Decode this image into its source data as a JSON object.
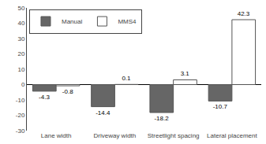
{
  "chart_data": {
    "type": "bar",
    "categories": [
      "Lane width",
      "Driveway width",
      "Streetlight spacing",
      "Lateral placement"
    ],
    "series": [
      {
        "name": "Manual",
        "color": "#666666",
        "values": [
          -4.3,
          -14.4,
          -18.2,
          -10.7
        ]
      },
      {
        "name": "MMS4",
        "color": "#ffffff",
        "values": [
          -0.8,
          0.1,
          3.1,
          42.3
        ]
      }
    ],
    "ylim": [
      -30,
      50
    ],
    "yticks": [
      -30,
      -20,
      -10,
      0,
      10,
      20,
      30,
      40,
      50
    ],
    "grid": false,
    "legend": "upper left",
    "data_labels": true
  }
}
